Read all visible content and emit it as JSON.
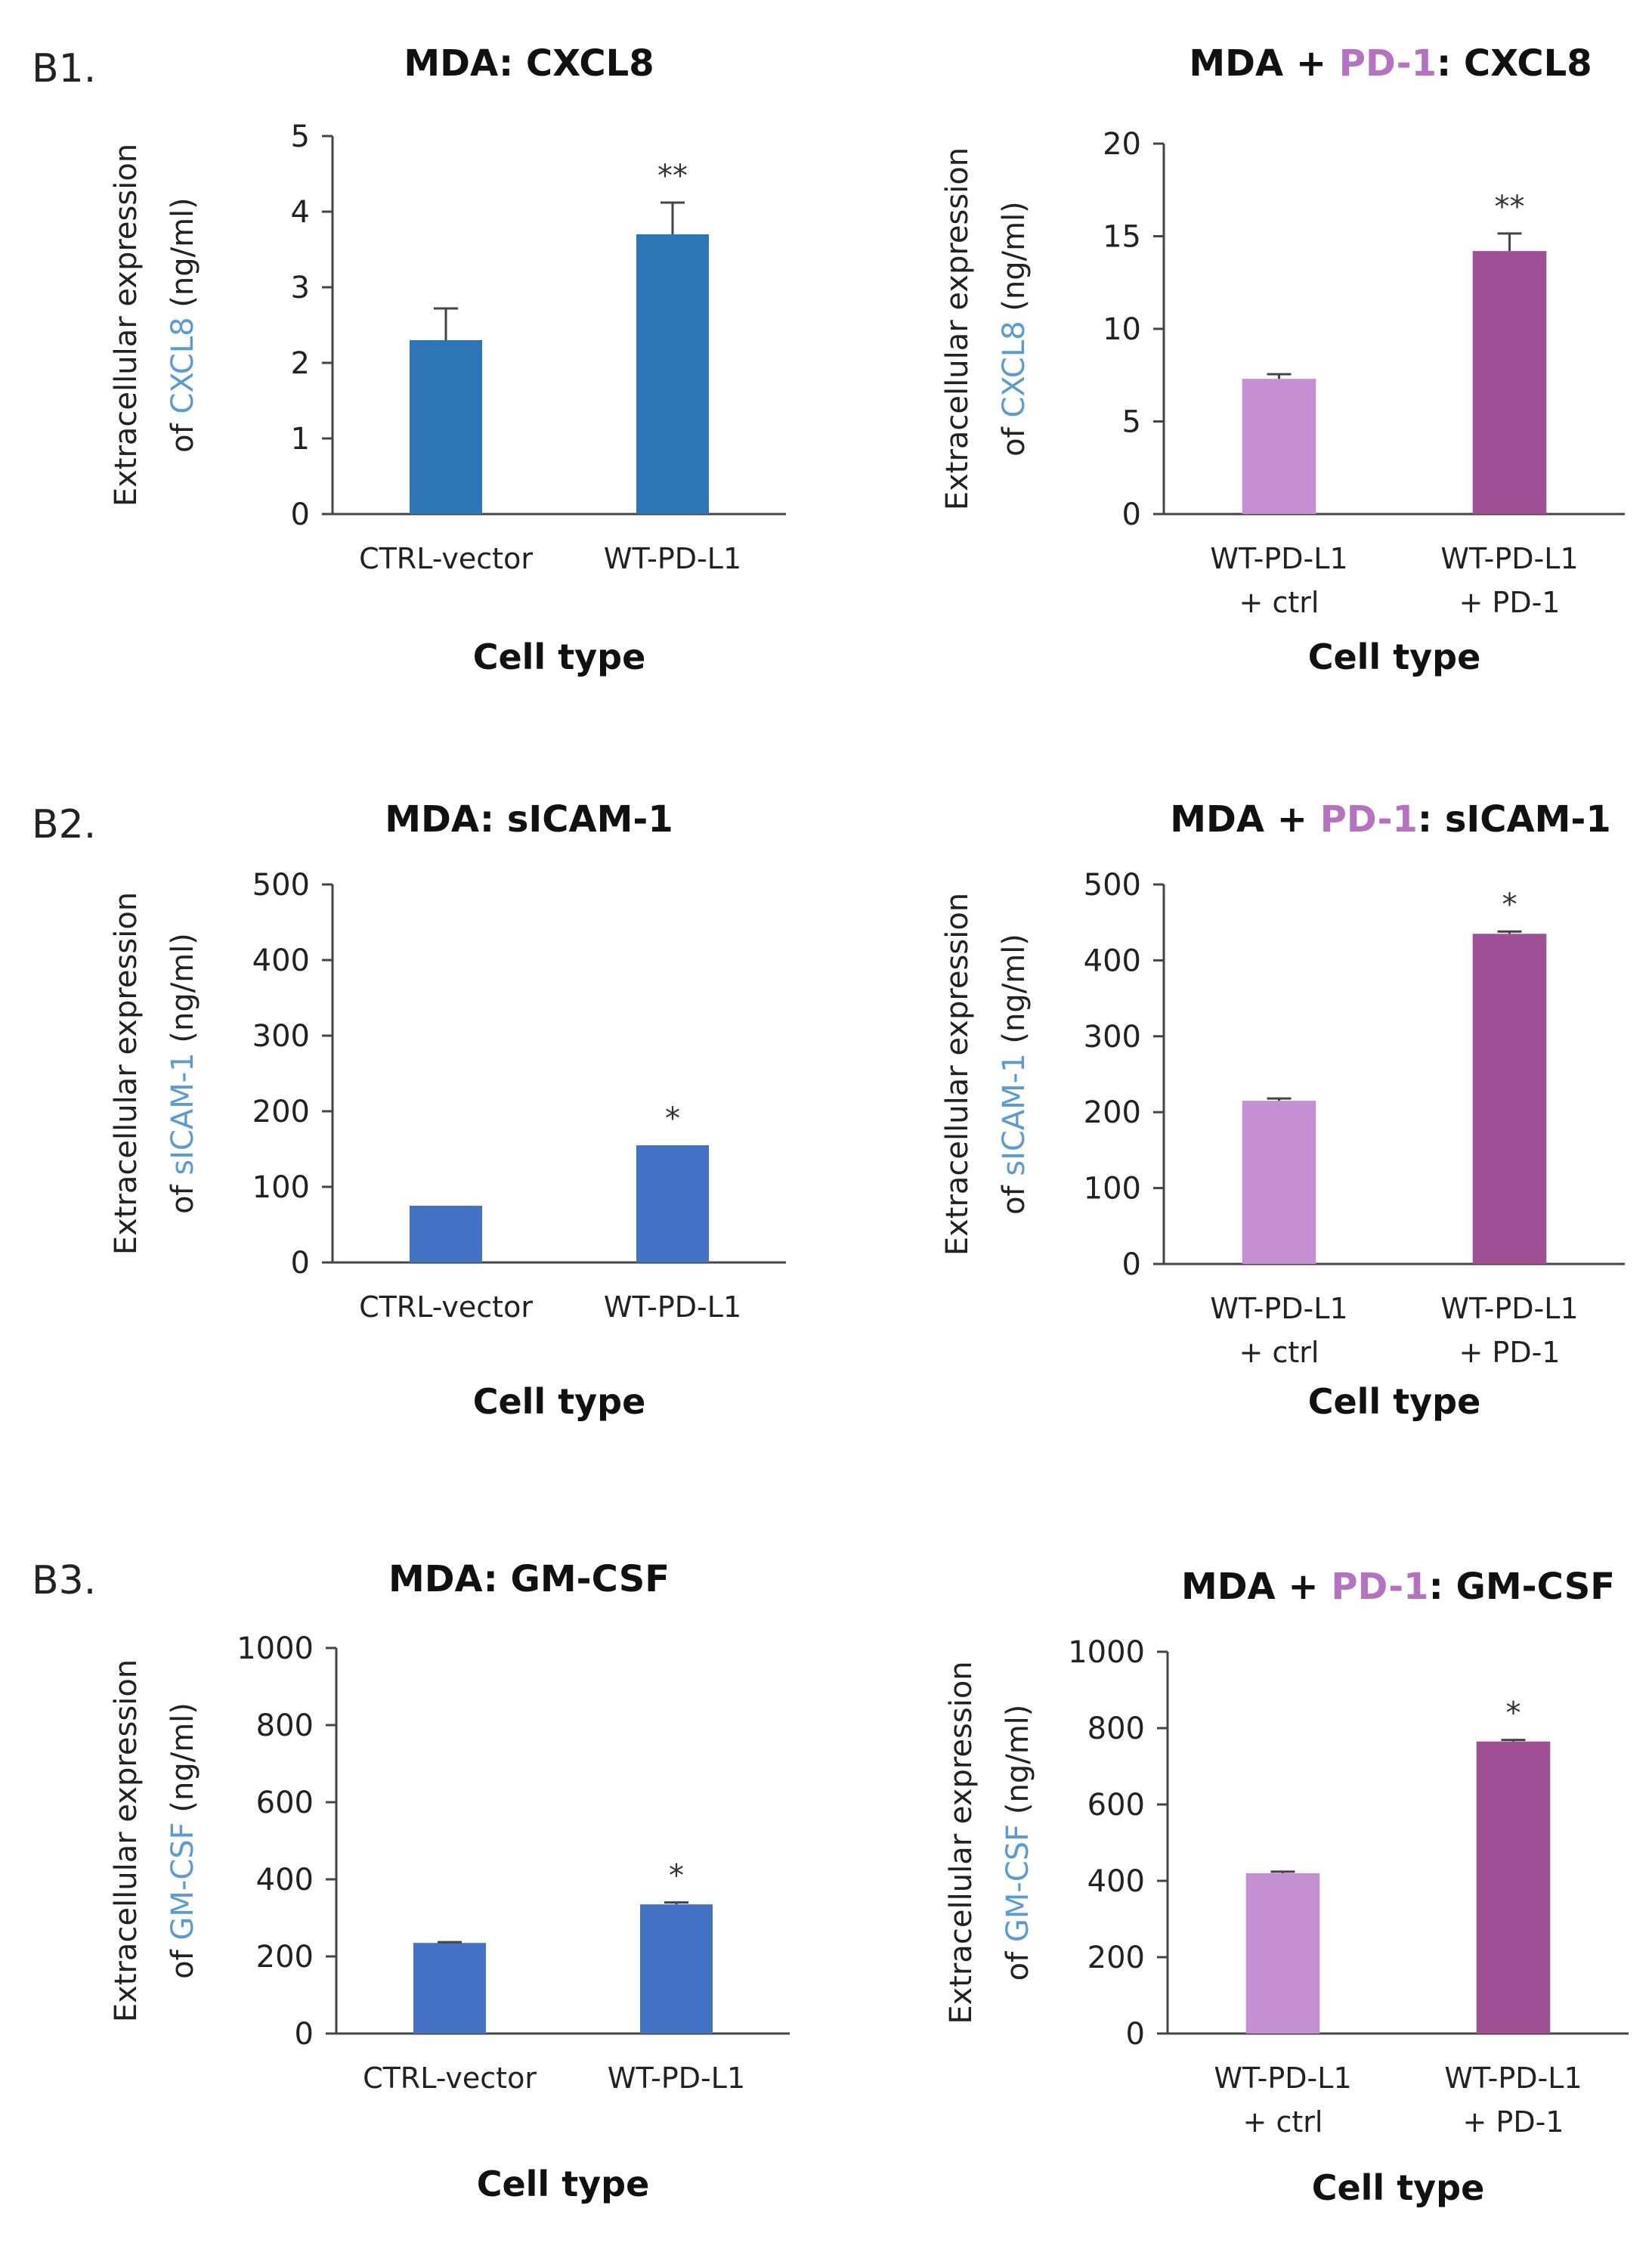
{
  "colors": {
    "blue_bar": "#2E75B6",
    "blue_bar_alt": "#4472C4",
    "light_purple_bar": "#C490D1",
    "dark_purple_bar": "#A05195",
    "highlight_blue_text": "#5B9BD5",
    "highlight_purple_text": "#B472C1",
    "axis": "#444444"
  },
  "panels": [
    {
      "label": "B1."
    },
    {
      "label": "B2."
    },
    {
      "label": "B3."
    }
  ],
  "chart_data": [
    {
      "type": "bar",
      "title_parts": [
        "MDA: CXCL8"
      ],
      "ylabel_line1": "Extracellular expression",
      "ylabel_line2_parts": [
        "of ",
        "CXCL8",
        " (ng/ml)"
      ],
      "xlabel": "Cell type",
      "categories": [
        [
          "CTRL-vector"
        ],
        [
          "WT-PD-L1"
        ]
      ],
      "values": [
        2.3,
        3.7
      ],
      "errors": [
        0.42,
        0.42
      ],
      "significance": [
        "",
        "**"
      ],
      "ylim": [
        0,
        5
      ],
      "yticks": [
        "0",
        "1",
        "2",
        "3",
        "4",
        "5"
      ],
      "bar_colors": [
        "#2E75B6",
        "#2E75B6"
      ]
    },
    {
      "type": "bar",
      "title_parts": [
        "MDA + ",
        "PD-1",
        ": CXCL8"
      ],
      "ylabel_line1": "Extracellular expression",
      "ylabel_line2_parts": [
        "of ",
        "CXCL8",
        " (ng/ml)"
      ],
      "xlabel": "Cell type",
      "categories": [
        [
          "WT-PD-L1",
          "+ ctrl"
        ],
        [
          "WT-PD-L1",
          "+ PD-1"
        ]
      ],
      "values": [
        7.3,
        14.2
      ],
      "errors": [
        0.25,
        0.95
      ],
      "significance": [
        "",
        "**"
      ],
      "ylim": [
        0,
        20
      ],
      "yticks": [
        "0",
        "5",
        "10",
        "15",
        "20"
      ],
      "bar_colors": [
        "#C490D1",
        "#A05195"
      ]
    },
    {
      "type": "bar",
      "title_parts": [
        "MDA: sICAM-1"
      ],
      "ylabel_line1": "Extracellular expression",
      "ylabel_line2_parts": [
        "of ",
        "sICAM-1",
        " (ng/ml)"
      ],
      "xlabel": "Cell type",
      "categories": [
        [
          "CTRL-vector"
        ],
        [
          "WT-PD-L1"
        ]
      ],
      "values": [
        75,
        155
      ],
      "errors": [
        0,
        0
      ],
      "significance": [
        "",
        "*"
      ],
      "ylim": [
        0,
        500
      ],
      "yticks": [
        "0",
        "100",
        "200",
        "300",
        "400",
        "500"
      ],
      "bar_colors": [
        "#4472C4",
        "#4472C4"
      ]
    },
    {
      "type": "bar",
      "title_parts": [
        "MDA + ",
        "PD-1",
        ": sICAM-1"
      ],
      "ylabel_line1": "Extracellular expression",
      "ylabel_line2_parts": [
        "of ",
        "sICAM-1",
        " (ng/ml)"
      ],
      "xlabel": "Cell type",
      "categories": [
        [
          "WT-PD-L1",
          "+ ctrl"
        ],
        [
          "WT-PD-L1",
          "+ PD-1"
        ]
      ],
      "values": [
        215,
        435
      ],
      "errors": [
        3,
        3
      ],
      "significance": [
        "",
        "*"
      ],
      "ylim": [
        0,
        500
      ],
      "yticks": [
        "0",
        "100",
        "200",
        "300",
        "400",
        "500"
      ],
      "bar_colors": [
        "#C490D1",
        "#A05195"
      ]
    },
    {
      "type": "bar",
      "title_parts": [
        "MDA: GM-CSF"
      ],
      "ylabel_line1": "Extracellular expression",
      "ylabel_line2_parts": [
        "of ",
        "GM-CSF",
        " (ng/ml)"
      ],
      "xlabel": "Cell type",
      "categories": [
        [
          "CTRL-vector"
        ],
        [
          "WT-PD-L1"
        ]
      ],
      "values": [
        235,
        335
      ],
      "errors": [
        2,
        5
      ],
      "significance": [
        "",
        "*"
      ],
      "ylim": [
        0,
        1000
      ],
      "yticks": [
        "0",
        "200",
        "400",
        "600",
        "800",
        "1000"
      ],
      "bar_colors": [
        "#4472C4",
        "#4472C4"
      ]
    },
    {
      "type": "bar",
      "title_parts": [
        "MDA + ",
        "PD-1",
        ": GM-CSF"
      ],
      "ylabel_line1": "Extracellular expression",
      "ylabel_line2_parts": [
        "of ",
        "GM-CSF",
        " (ng/ml)"
      ],
      "xlabel": "Cell type",
      "categories": [
        [
          "WT-PD-L1",
          "+ ctrl"
        ],
        [
          "WT-PD-L1",
          "+ PD-1"
        ]
      ],
      "values": [
        420,
        765
      ],
      "errors": [
        4,
        4
      ],
      "significance": [
        "",
        "*"
      ],
      "ylim": [
        0,
        1000
      ],
      "yticks": [
        "0",
        "200",
        "400",
        "600",
        "800",
        "1000"
      ],
      "bar_colors": [
        "#C490D1",
        "#A05195"
      ]
    }
  ]
}
